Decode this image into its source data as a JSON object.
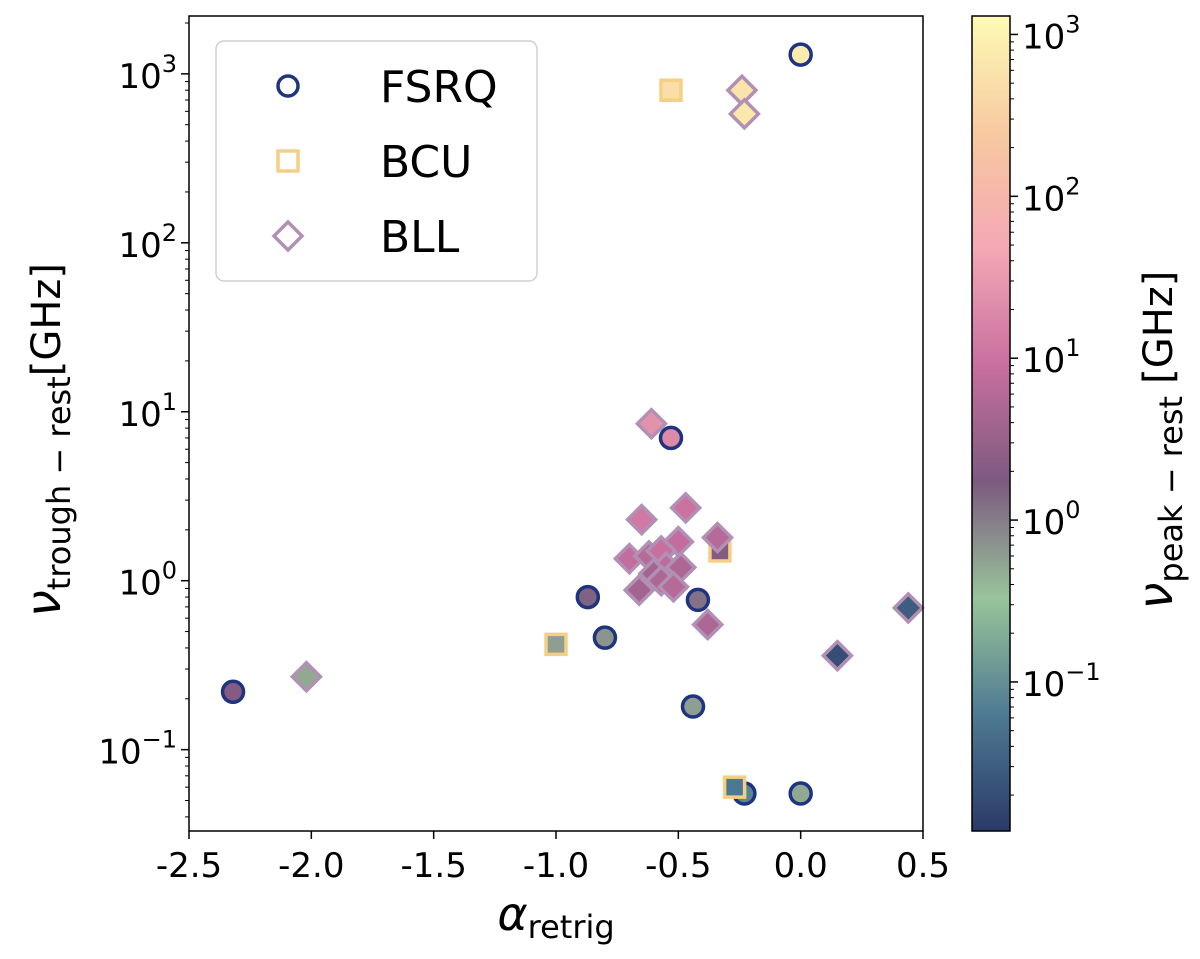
{
  "chart_data": {
    "type": "scatter",
    "x_axis": {
      "label_main": "α",
      "label_sub": "retrig",
      "range": [
        -2.5,
        0.5
      ],
      "ticks": [
        -2.5,
        -2.0,
        -1.5,
        -1.0,
        -0.5,
        0.0,
        0.5
      ],
      "tick_labels": [
        "-2.5",
        "-2.0",
        "-1.5",
        "-1.0",
        "-0.5",
        "0.0",
        "0.5"
      ]
    },
    "y_axis": {
      "label_main": "ν",
      "label_sub": "trough − rest",
      "label_unit": "[GHz]",
      "scale": "log",
      "range": [
        0.033,
        2200
      ],
      "ticks": [
        0.1,
        1,
        10,
        100,
        1000
      ],
      "tick_bases": [
        "10",
        "10",
        "10",
        "10",
        "10"
      ],
      "tick_exponents": [
        "−1",
        "0",
        "1",
        "2",
        "3"
      ]
    },
    "colorbar": {
      "label_main": "ν",
      "label_sub": "peak − rest",
      "label_unit": "[GHz]",
      "scale": "log",
      "range": [
        0.012,
        1300
      ],
      "ticks": [
        0.1,
        1,
        10,
        100,
        1000
      ],
      "tick_bases": [
        "10",
        "10",
        "10",
        "10",
        "10"
      ],
      "tick_exponents": [
        "−1",
        "0",
        "1",
        "2",
        "3"
      ],
      "colormap_stops": [
        "#2b3a67",
        "#4e7a93",
        "#98c49a",
        "#7d5a80",
        "#c86f9f",
        "#f4a8b4",
        "#f7c9a0",
        "#fdfbb4"
      ]
    },
    "legend": {
      "placement": "top-left",
      "entries": [
        {
          "label": "FSRQ",
          "marker": "circle",
          "edge_color": "#1f3380"
        },
        {
          "label": "BCU",
          "marker": "square",
          "edge_color": "#f6cf86"
        },
        {
          "label": "BLL",
          "marker": "diamond",
          "edge_color": "#b28fb5"
        }
      ]
    },
    "series": [
      {
        "name": "FSRQ",
        "marker": "circle",
        "edge_color": "#1f3380",
        "points": [
          {
            "x": 0.0,
            "y": 1300,
            "c": 800
          },
          {
            "x": -0.53,
            "y": 7.0,
            "c": 20
          },
          {
            "x": -0.87,
            "y": 0.8,
            "c": 1.5
          },
          {
            "x": -0.8,
            "y": 0.46,
            "c": 0.7
          },
          {
            "x": -0.42,
            "y": 0.77,
            "c": 1.2
          },
          {
            "x": -2.32,
            "y": 0.22,
            "c": 2
          },
          {
            "x": -0.44,
            "y": 0.18,
            "c": 0.6
          },
          {
            "x": -0.23,
            "y": 0.055,
            "c": 0.08
          },
          {
            "x": 0.0,
            "y": 0.055,
            "c": 0.5
          }
        ]
      },
      {
        "name": "BCU",
        "marker": "square",
        "edge_color": "#f6cf86",
        "points": [
          {
            "x": -0.53,
            "y": 800,
            "c": 500
          },
          {
            "x": -0.58,
            "y": 1.4,
            "c": 3
          },
          {
            "x": -0.33,
            "y": 1.5,
            "c": 2
          },
          {
            "x": -1.0,
            "y": 0.42,
            "c": 0.6
          },
          {
            "x": -0.27,
            "y": 0.06,
            "c": 0.06
          }
        ]
      },
      {
        "name": "BLL",
        "marker": "diamond",
        "edge_color": "#b28fb5",
        "points": [
          {
            "x": -0.24,
            "y": 800,
            "c": 600
          },
          {
            "x": -0.23,
            "y": 580,
            "c": 700
          },
          {
            "x": -0.61,
            "y": 8.5,
            "c": 25
          },
          {
            "x": -0.65,
            "y": 2.3,
            "c": 12
          },
          {
            "x": -0.47,
            "y": 2.7,
            "c": 10
          },
          {
            "x": -0.5,
            "y": 1.7,
            "c": 8
          },
          {
            "x": -0.34,
            "y": 1.8,
            "c": 6
          },
          {
            "x": -0.7,
            "y": 1.35,
            "c": 8
          },
          {
            "x": -0.62,
            "y": 1.4,
            "c": 6
          },
          {
            "x": -0.57,
            "y": 1.5,
            "c": 9
          },
          {
            "x": -0.55,
            "y": 1.2,
            "c": 7
          },
          {
            "x": -0.49,
            "y": 1.2,
            "c": 5
          },
          {
            "x": -0.6,
            "y": 1.1,
            "c": 4
          },
          {
            "x": -0.57,
            "y": 1.0,
            "c": 5
          },
          {
            "x": -0.66,
            "y": 0.88,
            "c": 4
          },
          {
            "x": -0.52,
            "y": 0.92,
            "c": 6
          },
          {
            "x": -0.38,
            "y": 0.55,
            "c": 5
          },
          {
            "x": -2.02,
            "y": 0.27,
            "c": 0.5
          },
          {
            "x": 0.15,
            "y": 0.36,
            "c": 0.02
          },
          {
            "x": 0.44,
            "y": 0.69,
            "c": 0.03
          }
        ]
      }
    ]
  }
}
